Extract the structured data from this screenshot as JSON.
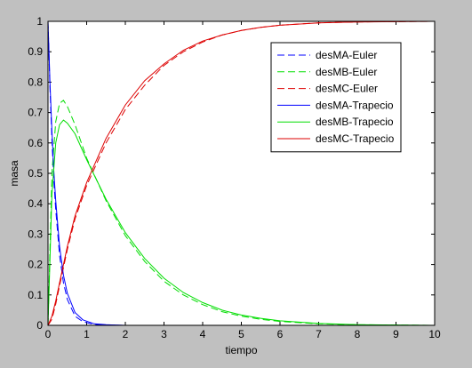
{
  "chart_data": {
    "type": "line",
    "title": "",
    "xlabel": "tiempo",
    "ylabel": "masa",
    "xlim": [
      0,
      10
    ],
    "ylim": [
      0,
      1
    ],
    "xticks": [
      "0",
      "1",
      "2",
      "3",
      "4",
      "5",
      "6",
      "7",
      "8",
      "9",
      "10"
    ],
    "yticks": [
      "0",
      "0.1",
      "0.2",
      "0.3",
      "0.4",
      "0.5",
      "0.6",
      "0.7",
      "0.8",
      "0.9",
      "1"
    ],
    "grid": false,
    "legend_position": "top-right",
    "series": [
      {
        "name": "desMA-Euler",
        "color": "#0000ff",
        "dashed": true,
        "x": [
          0,
          0.05,
          0.1,
          0.15,
          0.2,
          0.3,
          0.4,
          0.5,
          0.7,
          0.9,
          1.2,
          1.5,
          2,
          3,
          10
        ],
        "y": [
          1,
          0.78,
          0.61,
          0.48,
          0.38,
          0.23,
          0.14,
          0.085,
          0.03,
          0.012,
          0.003,
          0.001,
          0,
          0,
          0
        ]
      },
      {
        "name": "desMB-Euler",
        "color": "#00dd00",
        "dashed": true,
        "x": [
          0,
          0.1,
          0.2,
          0.3,
          0.4,
          0.5,
          0.7,
          1,
          1.5,
          2,
          2.5,
          3,
          3.5,
          4,
          4.5,
          5,
          5.5,
          6,
          7,
          8,
          10
        ],
        "y": [
          0,
          0.5,
          0.67,
          0.73,
          0.74,
          0.72,
          0.66,
          0.55,
          0.41,
          0.295,
          0.21,
          0.145,
          0.1,
          0.068,
          0.045,
          0.03,
          0.02,
          0.013,
          0.005,
          0.002,
          0
        ]
      },
      {
        "name": "desMC-Euler",
        "color": "#dd0000",
        "dashed": true,
        "x": [
          0,
          0.1,
          0.2,
          0.3,
          0.4,
          0.5,
          0.7,
          1,
          1.5,
          2,
          2.5,
          3,
          3.5,
          4,
          4.5,
          5,
          5.5,
          6,
          7,
          8,
          10
        ],
        "y": [
          0,
          0.02,
          0.07,
          0.13,
          0.19,
          0.25,
          0.35,
          0.46,
          0.6,
          0.71,
          0.79,
          0.855,
          0.9,
          0.932,
          0.955,
          0.97,
          0.98,
          0.987,
          0.995,
          0.998,
          1
        ]
      },
      {
        "name": "desMA-Trapecio",
        "color": "#0000ff",
        "dashed": false,
        "x": [
          0,
          0.05,
          0.1,
          0.15,
          0.2,
          0.3,
          0.4,
          0.5,
          0.7,
          0.9,
          1.2,
          1.5,
          2,
          3,
          10
        ],
        "y": [
          1,
          0.8,
          0.64,
          0.51,
          0.41,
          0.26,
          0.165,
          0.105,
          0.042,
          0.018,
          0.005,
          0.002,
          0,
          0,
          0
        ]
      },
      {
        "name": "desMB-Trapecio",
        "color": "#00dd00",
        "dashed": false,
        "x": [
          0,
          0.1,
          0.2,
          0.3,
          0.4,
          0.5,
          0.7,
          1,
          1.5,
          2,
          2.5,
          3,
          3.5,
          4,
          4.5,
          5,
          5.5,
          6,
          7,
          8,
          10
        ],
        "y": [
          0,
          0.43,
          0.6,
          0.66,
          0.675,
          0.665,
          0.63,
          0.545,
          0.415,
          0.305,
          0.22,
          0.155,
          0.108,
          0.075,
          0.05,
          0.034,
          0.023,
          0.015,
          0.006,
          0.002,
          0
        ]
      },
      {
        "name": "desMC-Trapecio",
        "color": "#dd0000",
        "dashed": false,
        "x": [
          0,
          0.1,
          0.2,
          0.3,
          0.4,
          0.5,
          0.7,
          1,
          1.5,
          2,
          2.5,
          3,
          3.5,
          4,
          4.5,
          5,
          5.5,
          6,
          7,
          8,
          10
        ],
        "y": [
          0,
          0.03,
          0.08,
          0.14,
          0.2,
          0.26,
          0.36,
          0.47,
          0.615,
          0.725,
          0.805,
          0.86,
          0.905,
          0.935,
          0.955,
          0.97,
          0.98,
          0.987,
          0.995,
          0.998,
          1
        ]
      }
    ]
  }
}
